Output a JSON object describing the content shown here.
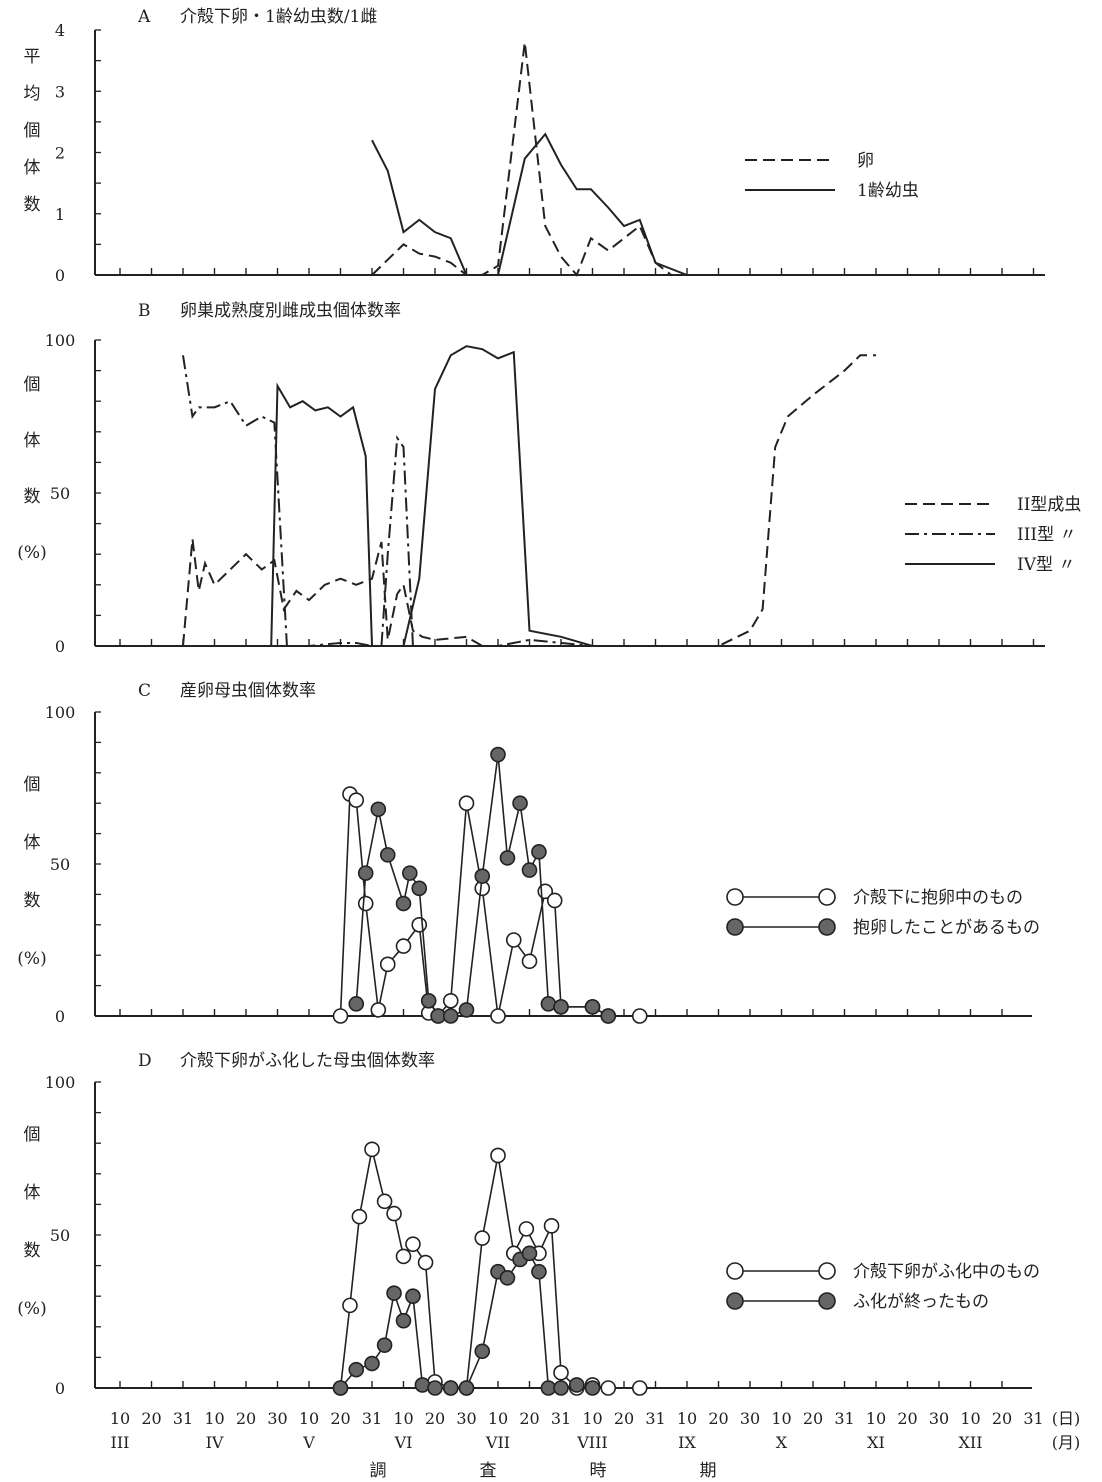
{
  "panels": [
    {
      "key": "A",
      "letter": "A",
      "title": "介殻下卵・1齢幼虫数/1雌",
      "ylabel": [
        "平",
        "均",
        "個",
        "体",
        "数"
      ],
      "ylim": [
        0,
        4
      ],
      "yticks": [
        "0",
        "1",
        "2",
        "3",
        "4"
      ],
      "legend": [
        {
          "label": "卵",
          "style": "dash"
        },
        {
          "label": "1齢幼虫",
          "style": "solid"
        }
      ]
    },
    {
      "key": "B",
      "letter": "B",
      "title": "卵巣成熟度別雌成虫個体数率",
      "ylabel": [
        "個",
        "体",
        "数",
        "(%)"
      ],
      "ylim": [
        0,
        100
      ],
      "yticks": [
        "0",
        "50",
        "100"
      ],
      "legend": [
        {
          "label": "II型成虫",
          "style": "dash"
        },
        {
          "label": "III型 〃",
          "style": "dashdot"
        },
        {
          "label": "IV型 〃",
          "style": "solid"
        }
      ]
    },
    {
      "key": "C",
      "letter": "C",
      "title": "産卵母虫個体数率",
      "ylabel": [
        "個",
        "体",
        "数",
        "(%)"
      ],
      "ylim": [
        0,
        100
      ],
      "yticks": [
        "0",
        "50",
        "100"
      ],
      "legend": [
        {
          "label": "介殻下に抱卵中のもの",
          "marker": "open"
        },
        {
          "label": "抱卵したことがあるもの",
          "marker": "filled"
        }
      ]
    },
    {
      "key": "D",
      "letter": "D",
      "title": "介殻下卵がふ化した母虫個体数率",
      "ylabel": [
        "個",
        "体",
        "数",
        "(%)"
      ],
      "ylim": [
        0,
        100
      ],
      "yticks": [
        "0",
        "50",
        "100"
      ],
      "legend": [
        {
          "label": "介殻下卵がふ化中のもの",
          "marker": "open"
        },
        {
          "label": "ふ化が終ったもの",
          "marker": "filled"
        }
      ]
    }
  ],
  "xaxis": {
    "day_labels": [
      "10",
      "20",
      "31",
      "10",
      "20",
      "30",
      "10",
      "20",
      "31",
      "10",
      "20",
      "30",
      "10",
      "20",
      "31",
      "10",
      "20",
      "31",
      "10",
      "20",
      "30",
      "10",
      "20",
      "31",
      "10",
      "20",
      "30",
      "10",
      "20",
      "31"
    ],
    "month_labels": [
      "III",
      "IV",
      "V",
      "VI",
      "VII",
      "VIII",
      "IX",
      "X",
      "XI",
      "XII"
    ],
    "day_unit": "(日)",
    "month_unit": "(月)",
    "title": [
      "調",
      "査",
      "時",
      "期"
    ]
  },
  "colors": {
    "ink": "#222222",
    "filled_marker": "#666666",
    "open_marker": "#ffffff"
  },
  "chart_data": [
    {
      "type": "line",
      "panel": "A",
      "title": "介殻下卵・1齢幼虫数/1雌",
      "xlabel": "調査時期",
      "ylabel": "平均個体数",
      "ylim": [
        0,
        4
      ],
      "series": [
        {
          "name": "卵",
          "style": "dash",
          "points": [
            [
              8.0,
              0.0
            ],
            [
              9.0,
              0.5
            ],
            [
              9.5,
              0.35
            ],
            [
              10.0,
              0.3
            ],
            [
              10.5,
              0.2
            ],
            [
              11.0,
              0.0
            ],
            [
              11.5,
              0.0
            ],
            [
              12.0,
              0.15
            ],
            [
              12.85,
              3.8
            ],
            [
              13.5,
              0.8
            ],
            [
              14.0,
              0.3
            ],
            [
              14.5,
              0.0
            ],
            [
              14.95,
              0.6
            ],
            [
              15.5,
              0.4
            ],
            [
              16.0,
              0.6
            ],
            [
              16.5,
              0.8
            ],
            [
              17.0,
              0.2
            ],
            [
              17.5,
              0.0
            ]
          ]
        },
        {
          "name": "1齢幼虫",
          "style": "solid",
          "points": [
            [
              8.0,
              2.2
            ],
            [
              8.5,
              1.7
            ],
            [
              9.0,
              0.7
            ],
            [
              9.5,
              0.9
            ],
            [
              10.0,
              0.7
            ],
            [
              10.5,
              0.6
            ],
            [
              11.0,
              0.0
            ],
            [
              11.5,
              0.0
            ],
            [
              12.0,
              0.0
            ],
            [
              12.85,
              1.9
            ],
            [
              13.5,
              2.3
            ],
            [
              14.0,
              1.8
            ],
            [
              14.5,
              1.4
            ],
            [
              14.95,
              1.4
            ],
            [
              15.5,
              1.1
            ],
            [
              16.0,
              0.8
            ],
            [
              16.5,
              0.9
            ],
            [
              17.0,
              0.2
            ],
            [
              18.0,
              0.0
            ],
            [
              18.5,
              0.0
            ]
          ]
        }
      ]
    },
    {
      "type": "line",
      "panel": "B",
      "title": "卵巣成熟度別雌成虫個体数率",
      "xlabel": "調査時期",
      "ylabel": "個体数(%)",
      "ylim": [
        0,
        100
      ],
      "series": [
        {
          "name": "II型成虫",
          "style": "dash",
          "points": [
            [
              2.0,
              0
            ],
            [
              2.3,
              35
            ],
            [
              2.5,
              18
            ],
            [
              2.7,
              27
            ],
            [
              3.0,
              20
            ],
            [
              3.5,
              25
            ],
            [
              4.0,
              30
            ],
            [
              4.5,
              25
            ],
            [
              4.9,
              28
            ],
            [
              5.2,
              12
            ],
            [
              5.6,
              18
            ],
            [
              6.0,
              15
            ],
            [
              6.5,
              20
            ],
            [
              7.0,
              22
            ],
            [
              7.5,
              20
            ],
            [
              8.0,
              22
            ],
            [
              8.3,
              34
            ],
            [
              8.5,
              2
            ],
            [
              8.8,
              17
            ],
            [
              9.0,
              20
            ],
            [
              9.3,
              5
            ],
            [
              9.6,
              3
            ],
            [
              10.0,
              2
            ],
            [
              11.0,
              3
            ],
            [
              11.5,
              0
            ],
            [
              12.0,
              0
            ],
            [
              16.0,
              0
            ],
            [
              17.0,
              0
            ],
            [
              18.0,
              0
            ],
            [
              19.0,
              0
            ],
            [
              20.0,
              5
            ],
            [
              20.4,
              12
            ],
            [
              20.8,
              65
            ],
            [
              21.2,
              75
            ],
            [
              22.0,
              82
            ],
            [
              23.0,
              90
            ],
            [
              23.5,
              95
            ],
            [
              24.0,
              95
            ]
          ]
        },
        {
          "name": "III型",
          "style": "dashdot",
          "points": [
            [
              2.0,
              95
            ],
            [
              2.3,
              75
            ],
            [
              2.5,
              78
            ],
            [
              3.0,
              78
            ],
            [
              3.5,
              80
            ],
            [
              4.0,
              72
            ],
            [
              4.5,
              75
            ],
            [
              4.9,
              73
            ],
            [
              5.3,
              0
            ],
            [
              6.0,
              0
            ],
            [
              7.0,
              1
            ],
            [
              7.5,
              1
            ],
            [
              8.0,
              0
            ],
            [
              8.3,
              0
            ],
            [
              8.5,
              30
            ],
            [
              8.8,
              68
            ],
            [
              9.0,
              65
            ],
            [
              9.3,
              0
            ],
            [
              9.6,
              0
            ],
            [
              10.0,
              0
            ],
            [
              12.0,
              0
            ],
            [
              13.0,
              2
            ],
            [
              15.0,
              0
            ],
            [
              16.0,
              0
            ]
          ]
        },
        {
          "name": "IV型",
          "style": "solid",
          "points": [
            [
              4.8,
              0
            ],
            [
              5.0,
              85
            ],
            [
              5.4,
              78
            ],
            [
              5.8,
              80
            ],
            [
              6.2,
              77
            ],
            [
              6.6,
              78
            ],
            [
              7.0,
              75
            ],
            [
              7.4,
              78
            ],
            [
              7.8,
              62
            ],
            [
              8.0,
              0
            ],
            [
              9.0,
              0
            ],
            [
              9.5,
              22
            ],
            [
              10.0,
              84
            ],
            [
              10.5,
              95
            ],
            [
              11.0,
              98
            ],
            [
              11.5,
              97
            ],
            [
              12.0,
              94
            ],
            [
              12.5,
              96
            ],
            [
              13.0,
              5
            ],
            [
              14.0,
              3
            ],
            [
              15.0,
              0
            ],
            [
              16.0,
              0
            ]
          ]
        }
      ]
    },
    {
      "type": "scatter",
      "panel": "C",
      "title": "産卵母虫個体数率",
      "xlabel": "調査時期",
      "ylabel": "個体数(%)",
      "ylim": [
        0,
        100
      ],
      "series": [
        {
          "name": "介殻下に抱卵中のもの",
          "marker": "open",
          "points": [
            [
              7.0,
              0
            ],
            [
              7.3,
              73
            ],
            [
              7.5,
              71
            ],
            [
              7.8,
              37
            ],
            [
              8.2,
              2
            ],
            [
              8.5,
              17
            ],
            [
              9.0,
              23
            ],
            [
              9.5,
              30
            ],
            [
              9.8,
              1
            ],
            [
              10.1,
              0
            ],
            [
              10.5,
              5
            ],
            [
              11.0,
              70
            ],
            [
              11.5,
              42
            ],
            [
              12.0,
              0
            ],
            [
              12.5,
              25
            ],
            [
              13.0,
              18
            ],
            [
              13.5,
              41
            ],
            [
              13.8,
              38
            ],
            [
              14.0,
              3
            ],
            [
              15.0,
              3
            ],
            [
              15.5,
              0
            ],
            [
              16.5,
              0
            ]
          ]
        },
        {
          "name": "抱卵したことがあるもの",
          "marker": "filled",
          "points": [
            [
              7.5,
              4
            ],
            [
              7.8,
              47
            ],
            [
              8.2,
              68
            ],
            [
              8.5,
              53
            ],
            [
              9.0,
              37
            ],
            [
              9.2,
              47
            ],
            [
              9.5,
              42
            ],
            [
              9.8,
              5
            ],
            [
              10.1,
              0
            ],
            [
              10.5,
              0
            ],
            [
              11.0,
              2
            ],
            [
              11.5,
              46
            ],
            [
              12.0,
              86
            ],
            [
              12.3,
              52
            ],
            [
              12.7,
              70
            ],
            [
              13.0,
              48
            ],
            [
              13.3,
              54
            ],
            [
              13.6,
              4
            ],
            [
              14.0,
              3
            ],
            [
              15.0,
              3
            ],
            [
              15.5,
              0
            ]
          ]
        }
      ]
    },
    {
      "type": "scatter",
      "panel": "D",
      "title": "介殻下卵がふ化した母虫個体数率",
      "xlabel": "調査時期",
      "ylabel": "個体数(%)",
      "ylim": [
        0,
        100
      ],
      "series": [
        {
          "name": "介殻下卵がふ化中のもの",
          "marker": "open",
          "points": [
            [
              7.0,
              0
            ],
            [
              7.3,
              27
            ],
            [
              7.6,
              56
            ],
            [
              8.0,
              78
            ],
            [
              8.4,
              61
            ],
            [
              8.7,
              57
            ],
            [
              9.0,
              43
            ],
            [
              9.3,
              47
            ],
            [
              9.7,
              41
            ],
            [
              10.0,
              2
            ],
            [
              10.5,
              0
            ],
            [
              11.0,
              0
            ],
            [
              11.5,
              49
            ],
            [
              12.0,
              76
            ],
            [
              12.5,
              44
            ],
            [
              12.9,
              52
            ],
            [
              13.3,
              44
            ],
            [
              13.7,
              53
            ],
            [
              14.0,
              5
            ],
            [
              14.5,
              0
            ],
            [
              15.0,
              1
            ],
            [
              15.5,
              0
            ],
            [
              16.5,
              0
            ]
          ]
        },
        {
          "name": "ふ化が終ったもの",
          "marker": "filled",
          "points": [
            [
              7.0,
              0
            ],
            [
              7.5,
              6
            ],
            [
              8.0,
              8
            ],
            [
              8.4,
              14
            ],
            [
              8.7,
              31
            ],
            [
              9.0,
              22
            ],
            [
              9.3,
              30
            ],
            [
              9.6,
              1
            ],
            [
              10.0,
              0
            ],
            [
              10.5,
              0
            ],
            [
              11.0,
              0
            ],
            [
              11.5,
              12
            ],
            [
              12.0,
              38
            ],
            [
              12.3,
              36
            ],
            [
              12.7,
              42
            ],
            [
              13.0,
              44
            ],
            [
              13.3,
              38
            ],
            [
              13.6,
              0
            ],
            [
              14.0,
              0
            ],
            [
              14.5,
              1
            ],
            [
              15.0,
              0
            ]
          ]
        }
      ]
    }
  ]
}
